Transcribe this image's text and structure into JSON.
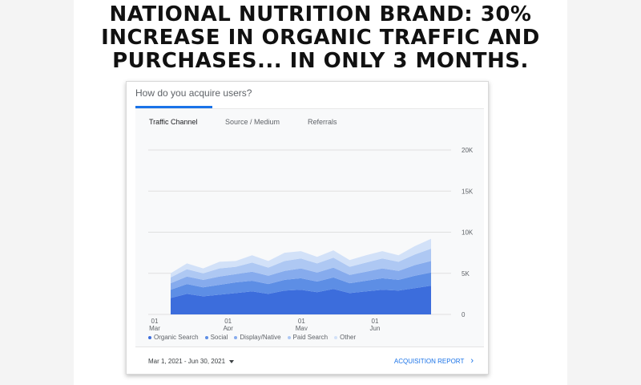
{
  "headline": {
    "lines": [
      "NATIONAL NUTRITION BRAND: 30%",
      "INCREASE IN ORGANIC TRAFFIC AND",
      "PURCHASES... IN ONLY 3 MONTHS."
    ]
  },
  "card": {
    "title": "How do you acquire users?",
    "tabs": [
      "Traffic Channel",
      "Source / Medium",
      "Referrals"
    ],
    "active_tab": "Traffic Channel",
    "date_range": "Mar 1, 2021 - Jun 30, 2021",
    "report_link": "ACQUISITION REPORT"
  },
  "colors": {
    "organic": "#3c6ddc",
    "social": "#5d8ee5",
    "display": "#86abed",
    "paid": "#aec8f3",
    "other": "#d2e1f8",
    "accent": "#1a73e8"
  },
  "chart_data": {
    "type": "area",
    "stacked": true,
    "x": [
      "Mar 10",
      "Mar 17",
      "Mar 24",
      "Mar 31",
      "Apr 7",
      "Apr 14",
      "Apr 21",
      "Apr 28",
      "May 5",
      "May 12",
      "May 19",
      "May 26",
      "Jun 2",
      "Jun 9",
      "Jun 16",
      "Jun 23",
      "Jun 30"
    ],
    "x_tick_labels": [
      {
        "day": "01",
        "month": "Mar"
      },
      {
        "day": "01",
        "month": "Apr"
      },
      {
        "day": "01",
        "month": "May"
      },
      {
        "day": "01",
        "month": "Jun"
      }
    ],
    "series": [
      {
        "name": "Organic Search",
        "values": [
          2000,
          2500,
          2200,
          2400,
          2600,
          2800,
          2500,
          2900,
          3000,
          2700,
          3100,
          2600,
          2800,
          3000,
          2900,
          3200,
          3500
        ]
      },
      {
        "name": "Social",
        "values": [
          1000,
          1200,
          1100,
          1200,
          1300,
          1300,
          1200,
          1300,
          1400,
          1300,
          1400,
          1200,
          1300,
          1400,
          1300,
          1500,
          1600
        ]
      },
      {
        "name": "Display/Native",
        "values": [
          800,
          900,
          900,
          1000,
          1000,
          1100,
          1000,
          1100,
          1200,
          1100,
          1200,
          1000,
          1100,
          1200,
          1100,
          1300,
          1400
        ]
      },
      {
        "name": "Paid Search",
        "values": [
          700,
          900,
          800,
          1000,
          900,
          1100,
          1000,
          1200,
          1200,
          1100,
          1200,
          1000,
          1100,
          1200,
          1100,
          1300,
          1500
        ]
      },
      {
        "name": "Other",
        "values": [
          500,
          700,
          600,
          800,
          700,
          900,
          800,
          1000,
          900,
          800,
          900,
          800,
          900,
          900,
          800,
          1000,
          1200
        ]
      }
    ],
    "ylim": [
      0,
      20000
    ],
    "y_tick_labels": [
      "0",
      "5K",
      "10K",
      "15K",
      "20K"
    ],
    "grid": true,
    "legend_position": "bottom"
  }
}
